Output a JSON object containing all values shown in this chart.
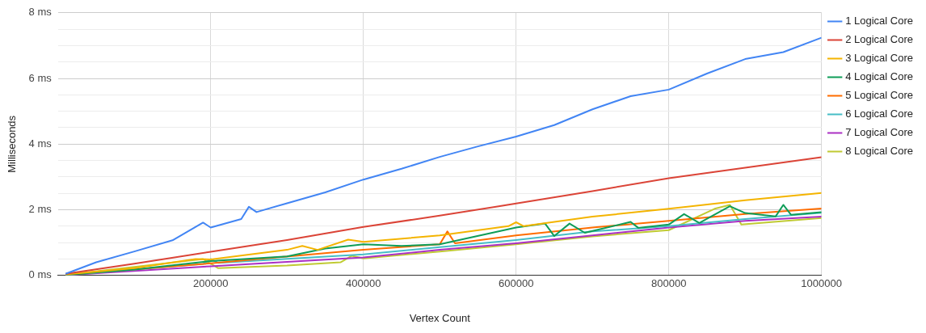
{
  "chart_data": {
    "type": "line",
    "xlabel": "Vertex Count",
    "ylabel": "Milliseconds",
    "xlim": [
      0,
      1000000
    ],
    "xticks": [
      200000,
      400000,
      600000,
      800000,
      1000000
    ],
    "ylim": [
      0,
      8
    ],
    "yticks": [
      {
        "value": 0,
        "label": "0 ms"
      },
      {
        "value": 0.5,
        "label": null
      },
      {
        "value": 1,
        "label": null
      },
      {
        "value": 1.5,
        "label": null
      },
      {
        "value": 2,
        "label": "2 ms"
      },
      {
        "value": 2.5,
        "label": null
      },
      {
        "value": 3,
        "label": null
      },
      {
        "value": 3.5,
        "label": null
      },
      {
        "value": 4,
        "label": "4 ms"
      },
      {
        "value": 4.5,
        "label": null
      },
      {
        "value": 5,
        "label": null
      },
      {
        "value": 5.5,
        "label": null
      },
      {
        "value": 6,
        "label": "6 ms"
      },
      {
        "value": 6.5,
        "label": null
      },
      {
        "value": 7,
        "label": null
      },
      {
        "value": 7.5,
        "label": null
      },
      {
        "value": 8,
        "label": "8 ms"
      }
    ],
    "grid": true,
    "legend": "top right",
    "marker": "none",
    "line_style": "solid",
    "series": [
      {
        "name": "1 Logical Core",
        "color": "#4285f4",
        "x": [
          10000,
          50000,
          100000,
          150000,
          190000,
          200000,
          240000,
          250000,
          260000,
          300000,
          350000,
          400000,
          450000,
          500000,
          550000,
          600000,
          650000,
          700000,
          750000,
          800000,
          850000,
          900000,
          950000,
          1000000
        ],
        "values": [
          0.05,
          0.4,
          0.73,
          1.07,
          1.61,
          1.46,
          1.72,
          2.09,
          1.93,
          2.2,
          2.53,
          2.92,
          3.25,
          3.61,
          3.93,
          4.23,
          4.58,
          5.06,
          5.46,
          5.66,
          6.15,
          6.59,
          6.8,
          7.24
        ]
      },
      {
        "name": "2 Logical Core",
        "color": "#db4437",
        "x": [
          10000,
          100000,
          200000,
          300000,
          400000,
          500000,
          600000,
          700000,
          800000,
          900000,
          1000000
        ],
        "values": [
          0.05,
          0.36,
          0.72,
          1.08,
          1.48,
          1.82,
          2.19,
          2.57,
          2.96,
          3.28,
          3.6
        ]
      },
      {
        "name": "3 Logical Core",
        "color": "#f4b400",
        "x": [
          10000,
          100000,
          180000,
          200000,
          300000,
          320000,
          340000,
          380000,
          400000,
          500000,
          590000,
          600000,
          610000,
          700000,
          800000,
          900000,
          1000000
        ],
        "values": [
          0.03,
          0.22,
          0.5,
          0.49,
          0.78,
          0.9,
          0.78,
          1.09,
          1.02,
          1.22,
          1.5,
          1.62,
          1.5,
          1.79,
          2.03,
          2.29,
          2.51
        ]
      },
      {
        "name": "4 Logical Core",
        "color": "#0f9d58",
        "x": [
          10000,
          100000,
          200000,
          300000,
          350000,
          400000,
          450000,
          500000,
          600000,
          638000,
          650000,
          670000,
          690000,
          750000,
          760000,
          800000,
          820000,
          840000,
          880000,
          900000,
          940000,
          950000,
          960000,
          1000000
        ],
        "values": [
          0.02,
          0.18,
          0.44,
          0.58,
          0.82,
          0.95,
          0.9,
          0.95,
          1.46,
          1.58,
          1.2,
          1.58,
          1.3,
          1.63,
          1.45,
          1.55,
          1.87,
          1.6,
          2.11,
          1.9,
          1.8,
          2.15,
          1.85,
          1.93
        ]
      },
      {
        "name": "5 Logical Core",
        "color": "#ff6d00",
        "x": [
          10000,
          200000,
          400000,
          500000,
          510000,
          520000,
          600000,
          700000,
          800000,
          900000,
          1000000
        ],
        "values": [
          0.02,
          0.37,
          0.78,
          0.95,
          1.34,
          0.98,
          1.22,
          1.46,
          1.66,
          1.87,
          2.04
        ]
      },
      {
        "name": "6 Logical Core",
        "color": "#46bdc6",
        "x": [
          10000,
          190000,
          200000,
          210000,
          400000,
          500000,
          600000,
          700000,
          800000,
          900000,
          1000000
        ],
        "values": [
          0.01,
          0.35,
          0.5,
          0.38,
          0.64,
          0.86,
          1.08,
          1.34,
          1.5,
          1.72,
          1.91
        ]
      },
      {
        "name": "7 Logical Core",
        "color": "#ab30c4",
        "x": [
          10000,
          200000,
          400000,
          500000,
          600000,
          700000,
          800000,
          900000,
          1000000
        ],
        "values": [
          0.01,
          0.28,
          0.55,
          0.78,
          0.98,
          1.22,
          1.46,
          1.66,
          1.79
        ]
      },
      {
        "name": "8 Logical Core",
        "color": "#c0ca33",
        "x": [
          10000,
          190000,
          210000,
          300000,
          370000,
          385000,
          400000,
          500000,
          600000,
          700000,
          800000,
          860000,
          880000,
          895000,
          1000000
        ],
        "values": [
          0.02,
          0.5,
          0.22,
          0.3,
          0.4,
          0.6,
          0.52,
          0.73,
          0.95,
          1.19,
          1.38,
          2.03,
          2.15,
          1.55,
          1.75
        ]
      }
    ]
  }
}
